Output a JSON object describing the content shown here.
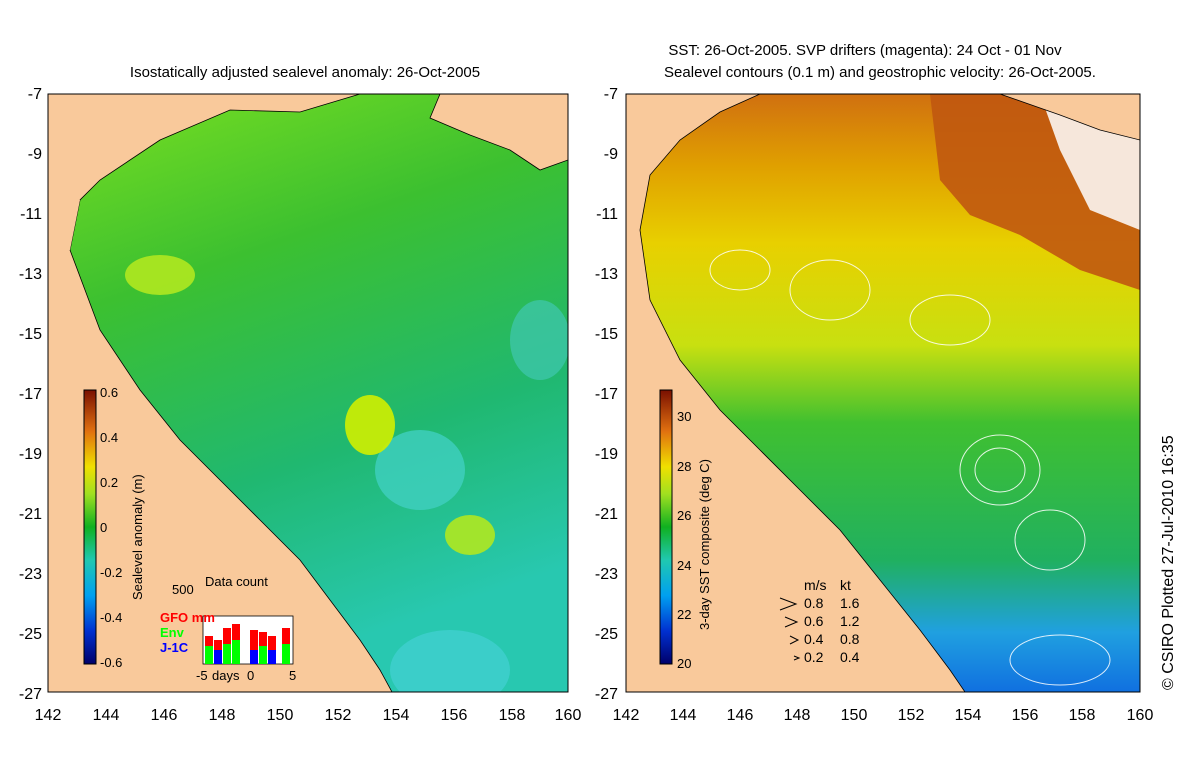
{
  "left_panel": {
    "title": "Isostatically adjusted sealevel anomaly: 26-Oct-2005",
    "lat_ticks": [
      "-7",
      "-9",
      "-11",
      "-13",
      "-15",
      "-17",
      "-19",
      "-21",
      "-23",
      "-25",
      "-27"
    ],
    "lon_ticks": [
      "142",
      "144",
      "146",
      "148",
      "150",
      "152",
      "154",
      "156",
      "158",
      "160"
    ],
    "colorbar": {
      "label": "Sealevel anomaly (m)",
      "ticks": [
        "0.6",
        "0.4",
        "0.2",
        "0",
        "-0.2",
        "-0.4",
        "-0.6"
      ],
      "range": [
        -0.6,
        0.6
      ]
    },
    "data_count": {
      "title": "Data count",
      "max_label": "500",
      "x_label": "days",
      "x_ticks": [
        "-5",
        "0",
        "5"
      ],
      "legend": [
        {
          "name": "GFO mm",
          "color": "#ff0000"
        },
        {
          "name": "Env",
          "color": "#00ff00"
        },
        {
          "name": "J-1C",
          "color": "#0000ff"
        }
      ]
    }
  },
  "right_panel": {
    "title_line1": "SST: 26-Oct-2005. SVP drifters (magenta): 24 Oct - 01 Nov",
    "title_line2": "Sealevel contours (0.1 m) and geostrophic velocity: 26-Oct-2005.",
    "lat_ticks": [
      "-7",
      "-9",
      "-11",
      "-13",
      "-15",
      "-17",
      "-19",
      "-21",
      "-23",
      "-25",
      "-27"
    ],
    "lon_ticks": [
      "142",
      "144",
      "146",
      "148",
      "150",
      "152",
      "154",
      "156",
      "158",
      "160"
    ],
    "colorbar": {
      "label": "3-day SST composite (deg C)",
      "ticks": [
        "30",
        "28",
        "26",
        "24",
        "22",
        "20"
      ],
      "range": [
        20,
        31
      ]
    },
    "velocity_legend": {
      "header_ms": "m/s",
      "header_kt": "kt",
      "rows": [
        {
          "ms": "0.8",
          "kt": "1.6"
        },
        {
          "ms": "0.6",
          "kt": "1.2"
        },
        {
          "ms": "0.4",
          "kt": "0.8"
        },
        {
          "ms": "0.2",
          "kt": "0.4"
        }
      ]
    }
  },
  "credit": "© CSIRO Plotted 27-Jul-2010 16:35",
  "colors": {
    "land": "#f9c99b",
    "background": "#ffffff"
  }
}
